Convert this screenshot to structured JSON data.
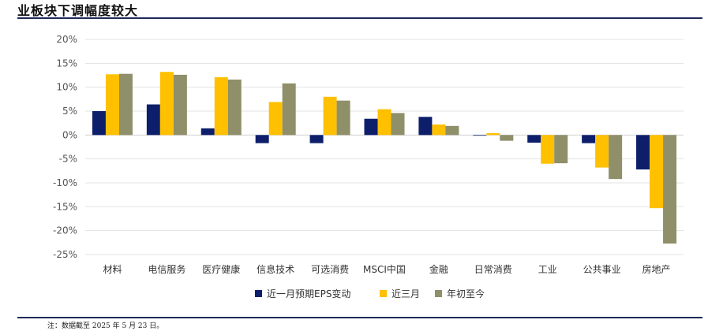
{
  "header": {
    "title": "业板块下调幅度较大"
  },
  "footer": {
    "note": "注：数据截至 2025 年 5 月 23 日。"
  },
  "chart_data": {
    "type": "bar",
    "categories": [
      "材料",
      "电信服务",
      "医疗健康",
      "信息技术",
      "可选消费",
      "MSCI中国",
      "金融",
      "日常消费",
      "工业",
      "公共事业",
      "房地产"
    ],
    "series": [
      {
        "name": "近一月预期EPS变动",
        "color": "#0d1f6b",
        "values": [
          5.0,
          6.4,
          1.4,
          -1.7,
          -1.7,
          3.4,
          3.8,
          -0.1,
          -1.6,
          -1.7,
          -7.2
        ]
      },
      {
        "name": "近三月",
        "color": "#ffc000",
        "values": [
          12.7,
          13.2,
          12.1,
          6.9,
          8.0,
          5.4,
          2.2,
          0.4,
          -6.0,
          -6.8,
          -15.3
        ]
      },
      {
        "name": "年初至今",
        "color": "#8f8f6a",
        "values": [
          12.8,
          12.6,
          11.6,
          10.8,
          7.2,
          4.6,
          1.9,
          -1.2,
          -5.9,
          -9.2,
          -22.7
        ]
      }
    ],
    "yticks": [
      "20%",
      "15%",
      "10%",
      "5%",
      "0%",
      "-5%",
      "-10%",
      "-15%",
      "-20%",
      "-25%"
    ],
    "ylim": [
      -25,
      20
    ],
    "ystep": 5,
    "grid": true,
    "legend_position": "bottom"
  }
}
